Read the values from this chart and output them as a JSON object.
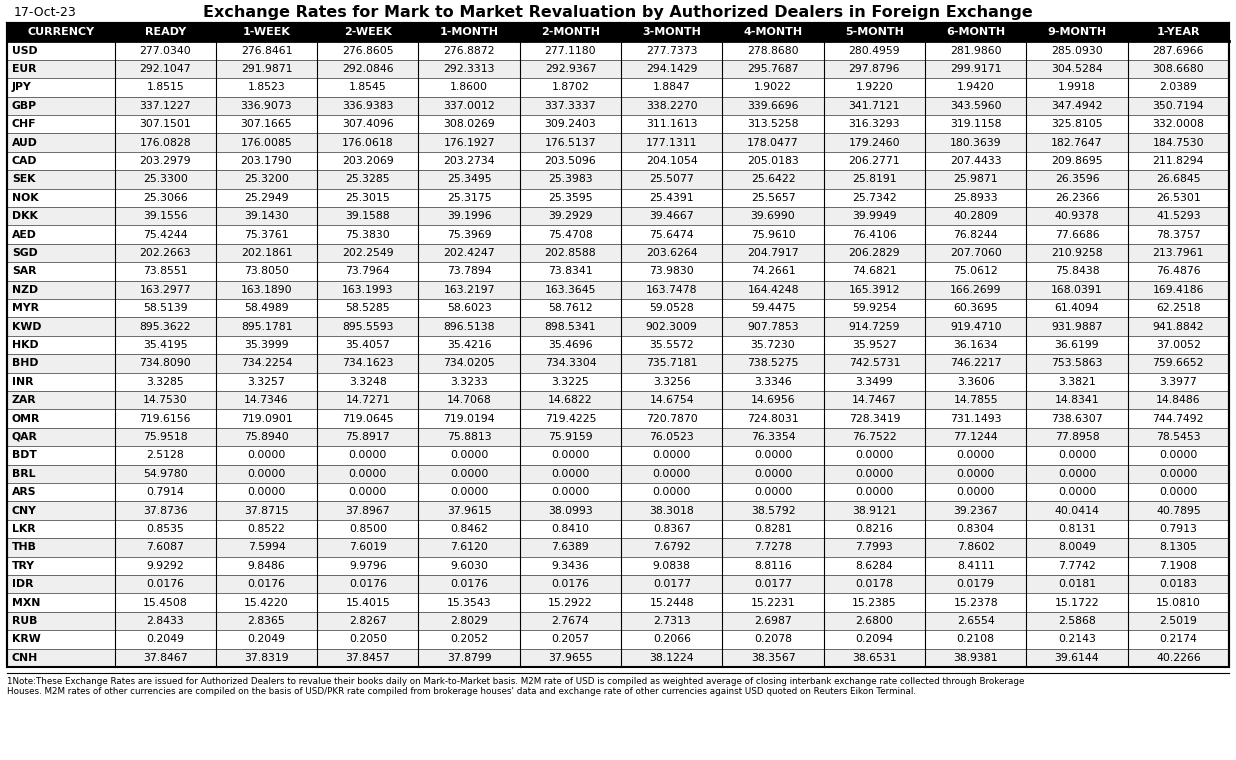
{
  "title": "Exchange Rates for Mark to Market Revaluation by Authorized Dealers in Foreign Exchange",
  "date_label": "17-Oct-23",
  "columns": [
    "CURRENCY",
    "READY",
    "1-WEEK",
    "2-WEEK",
    "1-MONTH",
    "2-MONTH",
    "3-MONTH",
    "4-MONTH",
    "5-MONTH",
    "6-MONTH",
    "9-MONTH",
    "1-YEAR"
  ],
  "rows": [
    [
      "USD",
      "277.0340",
      "276.8461",
      "276.8605",
      "276.8872",
      "277.1180",
      "277.7373",
      "278.8680",
      "280.4959",
      "281.9860",
      "285.0930",
      "287.6966"
    ],
    [
      "EUR",
      "292.1047",
      "291.9871",
      "292.0846",
      "292.3313",
      "292.9367",
      "294.1429",
      "295.7687",
      "297.8796",
      "299.9171",
      "304.5284",
      "308.6680"
    ],
    [
      "JPY",
      "1.8515",
      "1.8523",
      "1.8545",
      "1.8600",
      "1.8702",
      "1.8847",
      "1.9022",
      "1.9220",
      "1.9420",
      "1.9918",
      "2.0389"
    ],
    [
      "GBP",
      "337.1227",
      "336.9073",
      "336.9383",
      "337.0012",
      "337.3337",
      "338.2270",
      "339.6696",
      "341.7121",
      "343.5960",
      "347.4942",
      "350.7194"
    ],
    [
      "CHF",
      "307.1501",
      "307.1665",
      "307.4096",
      "308.0269",
      "309.2403",
      "311.1613",
      "313.5258",
      "316.3293",
      "319.1158",
      "325.8105",
      "332.0008"
    ],
    [
      "AUD",
      "176.0828",
      "176.0085",
      "176.0618",
      "176.1927",
      "176.5137",
      "177.1311",
      "178.0477",
      "179.2460",
      "180.3639",
      "182.7647",
      "184.7530"
    ],
    [
      "CAD",
      "203.2979",
      "203.1790",
      "203.2069",
      "203.2734",
      "203.5096",
      "204.1054",
      "205.0183",
      "206.2771",
      "207.4433",
      "209.8695",
      "211.8294"
    ],
    [
      "SEK",
      "25.3300",
      "25.3200",
      "25.3285",
      "25.3495",
      "25.3983",
      "25.5077",
      "25.6422",
      "25.8191",
      "25.9871",
      "26.3596",
      "26.6845"
    ],
    [
      "NOK",
      "25.3066",
      "25.2949",
      "25.3015",
      "25.3175",
      "25.3595",
      "25.4391",
      "25.5657",
      "25.7342",
      "25.8933",
      "26.2366",
      "26.5301"
    ],
    [
      "DKK",
      "39.1556",
      "39.1430",
      "39.1588",
      "39.1996",
      "39.2929",
      "39.4667",
      "39.6990",
      "39.9949",
      "40.2809",
      "40.9378",
      "41.5293"
    ],
    [
      "AED",
      "75.4244",
      "75.3761",
      "75.3830",
      "75.3969",
      "75.4708",
      "75.6474",
      "75.9610",
      "76.4106",
      "76.8244",
      "77.6686",
      "78.3757"
    ],
    [
      "SGD",
      "202.2663",
      "202.1861",
      "202.2549",
      "202.4247",
      "202.8588",
      "203.6264",
      "204.7917",
      "206.2829",
      "207.7060",
      "210.9258",
      "213.7961"
    ],
    [
      "SAR",
      "73.8551",
      "73.8050",
      "73.7964",
      "73.7894",
      "73.8341",
      "73.9830",
      "74.2661",
      "74.6821",
      "75.0612",
      "75.8438",
      "76.4876"
    ],
    [
      "NZD",
      "163.2977",
      "163.1890",
      "163.1993",
      "163.2197",
      "163.3645",
      "163.7478",
      "164.4248",
      "165.3912",
      "166.2699",
      "168.0391",
      "169.4186"
    ],
    [
      "MYR",
      "58.5139",
      "58.4989",
      "58.5285",
      "58.6023",
      "58.7612",
      "59.0528",
      "59.4475",
      "59.9254",
      "60.3695",
      "61.4094",
      "62.2518"
    ],
    [
      "KWD",
      "895.3622",
      "895.1781",
      "895.5593",
      "896.5138",
      "898.5341",
      "902.3009",
      "907.7853",
      "914.7259",
      "919.4710",
      "931.9887",
      "941.8842"
    ],
    [
      "HKD",
      "35.4195",
      "35.3999",
      "35.4057",
      "35.4216",
      "35.4696",
      "35.5572",
      "35.7230",
      "35.9527",
      "36.1634",
      "36.6199",
      "37.0052"
    ],
    [
      "BHD",
      "734.8090",
      "734.2254",
      "734.1623",
      "734.0205",
      "734.3304",
      "735.7181",
      "738.5275",
      "742.5731",
      "746.2217",
      "753.5863",
      "759.6652"
    ],
    [
      "INR",
      "3.3285",
      "3.3257",
      "3.3248",
      "3.3233",
      "3.3225",
      "3.3256",
      "3.3346",
      "3.3499",
      "3.3606",
      "3.3821",
      "3.3977"
    ],
    [
      "ZAR",
      "14.7530",
      "14.7346",
      "14.7271",
      "14.7068",
      "14.6822",
      "14.6754",
      "14.6956",
      "14.7467",
      "14.7855",
      "14.8341",
      "14.8486"
    ],
    [
      "OMR",
      "719.6156",
      "719.0901",
      "719.0645",
      "719.0194",
      "719.4225",
      "720.7870",
      "724.8031",
      "728.3419",
      "731.1493",
      "738.6307",
      "744.7492"
    ],
    [
      "QAR",
      "75.9518",
      "75.8940",
      "75.8917",
      "75.8813",
      "75.9159",
      "76.0523",
      "76.3354",
      "76.7522",
      "77.1244",
      "77.8958",
      "78.5453"
    ],
    [
      "BDT",
      "2.5128",
      "0.0000",
      "0.0000",
      "0.0000",
      "0.0000",
      "0.0000",
      "0.0000",
      "0.0000",
      "0.0000",
      "0.0000",
      "0.0000"
    ],
    [
      "BRL",
      "54.9780",
      "0.0000",
      "0.0000",
      "0.0000",
      "0.0000",
      "0.0000",
      "0.0000",
      "0.0000",
      "0.0000",
      "0.0000",
      "0.0000"
    ],
    [
      "ARS",
      "0.7914",
      "0.0000",
      "0.0000",
      "0.0000",
      "0.0000",
      "0.0000",
      "0.0000",
      "0.0000",
      "0.0000",
      "0.0000",
      "0.0000"
    ],
    [
      "CNY",
      "37.8736",
      "37.8715",
      "37.8967",
      "37.9615",
      "38.0993",
      "38.3018",
      "38.5792",
      "38.9121",
      "39.2367",
      "40.0414",
      "40.7895"
    ],
    [
      "LKR",
      "0.8535",
      "0.8522",
      "0.8500",
      "0.8462",
      "0.8410",
      "0.8367",
      "0.8281",
      "0.8216",
      "0.8304",
      "0.8131",
      "0.7913"
    ],
    [
      "THB",
      "7.6087",
      "7.5994",
      "7.6019",
      "7.6120",
      "7.6389",
      "7.6792",
      "7.7278",
      "7.7993",
      "7.8602",
      "8.0049",
      "8.1305"
    ],
    [
      "TRY",
      "9.9292",
      "9.8486",
      "9.9796",
      "9.6030",
      "9.3436",
      "9.0838",
      "8.8116",
      "8.6284",
      "8.4111",
      "7.7742",
      "7.1908"
    ],
    [
      "IDR",
      "0.0176",
      "0.0176",
      "0.0176",
      "0.0176",
      "0.0176",
      "0.0177",
      "0.0177",
      "0.0178",
      "0.0179",
      "0.0181",
      "0.0183"
    ],
    [
      "MXN",
      "15.4508",
      "15.4220",
      "15.4015",
      "15.3543",
      "15.2922",
      "15.2448",
      "15.2231",
      "15.2385",
      "15.2378",
      "15.1722",
      "15.0810"
    ],
    [
      "RUB",
      "2.8433",
      "2.8365",
      "2.8267",
      "2.8029",
      "2.7674",
      "2.7313",
      "2.6987",
      "2.6800",
      "2.6554",
      "2.5868",
      "2.5019"
    ],
    [
      "KRW",
      "0.2049",
      "0.2049",
      "0.2050",
      "0.2052",
      "0.2057",
      "0.2066",
      "0.2078",
      "0.2094",
      "0.2108",
      "0.2143",
      "0.2174"
    ],
    [
      "CNH",
      "37.8467",
      "37.8319",
      "37.8457",
      "37.8799",
      "37.9655",
      "38.1224",
      "38.3567",
      "38.6531",
      "38.9381",
      "39.6144",
      "40.2266"
    ]
  ],
  "footnote_line1": "1Note:These Exchange Rates are issued for Authorized Dealers to revalue their books daily on Mark-to-Market basis. M2M rate of USD is compiled as weighted average of closing interbank exchange rate collected through Brokerage",
  "footnote_line2": "Houses. M2M rates of other currencies are compiled on the basis of USD/PKR rate compiled from brokerage houses' data and exchange rate of other currencies against USD quoted on Reuters Eikon Terminal.",
  "header_bg": "#000000",
  "header_text": "#ffffff",
  "row_odd_bg": "#ffffff",
  "row_even_bg": "#efefef",
  "border_color": "#000000",
  "title_fontsize": 11.5,
  "date_fontsize": 9,
  "header_fontsize": 8.0,
  "data_fontsize": 7.8,
  "footnote_fontsize": 6.3
}
